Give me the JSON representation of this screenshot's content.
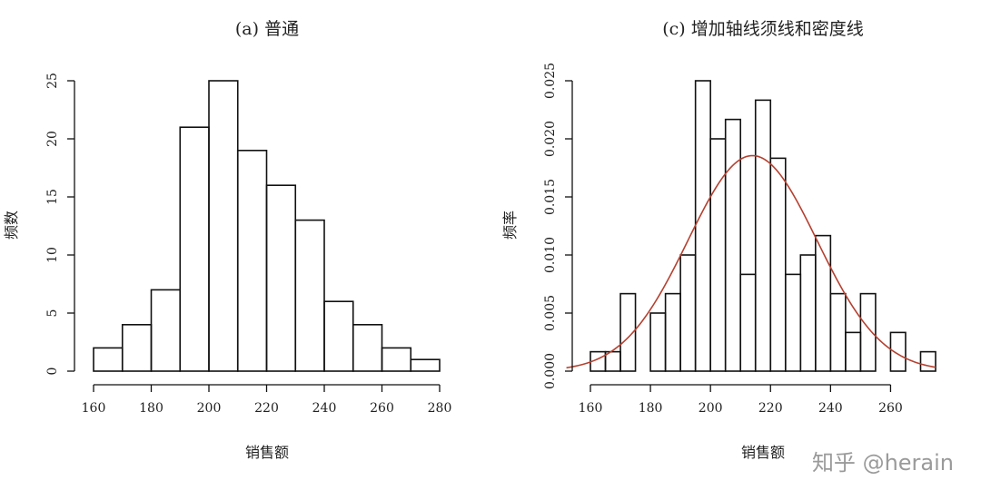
{
  "chart_data": [
    {
      "type": "bar",
      "title": "(a) 普通",
      "xlabel": "销售额",
      "ylabel": "频数",
      "bin_edges": [
        160,
        170,
        180,
        190,
        200,
        210,
        220,
        230,
        240,
        250,
        260,
        270,
        280
      ],
      "values": [
        2,
        4,
        7,
        21,
        25,
        19,
        16,
        13,
        6,
        4,
        2,
        1
      ],
      "xticks": [
        160,
        180,
        200,
        220,
        240,
        260,
        280
      ],
      "yticks": [
        0,
        5,
        10,
        15,
        20,
        25
      ],
      "xlim": [
        160,
        280
      ],
      "ylim": [
        0,
        25
      ]
    },
    {
      "type": "bar",
      "title": "(c) 增加轴线须线和密度线",
      "xlabel": "销售额",
      "ylabel": "频率",
      "bin_edges": [
        160,
        165,
        170,
        175,
        180,
        185,
        190,
        195,
        200,
        205,
        210,
        215,
        220,
        225,
        230,
        235,
        240,
        245,
        250,
        255,
        260,
        265,
        270,
        275
      ],
      "values": [
        0.00167,
        0.00167,
        0.00667,
        0.0,
        0.005,
        0.00667,
        0.01,
        0.025,
        0.02,
        0.02167,
        0.00833,
        0.02333,
        0.01833,
        0.00833,
        0.01,
        0.01167,
        0.00667,
        0.00333,
        0.00667,
        0.0,
        0.00333,
        0.0,
        0.00167
      ],
      "density_curve": {
        "type": "normal",
        "mean": 214,
        "sd": 21.5,
        "color": "#b5402f"
      },
      "xticks": [
        160,
        180,
        200,
        220,
        240,
        260
      ],
      "yticks": [
        "0.000",
        "0.005",
        "0.010",
        "0.015",
        "0.020",
        "0.025"
      ],
      "xlim": [
        160,
        275
      ],
      "ylim": [
        0,
        0.025
      ]
    }
  ],
  "watermark": "知乎 @herain"
}
